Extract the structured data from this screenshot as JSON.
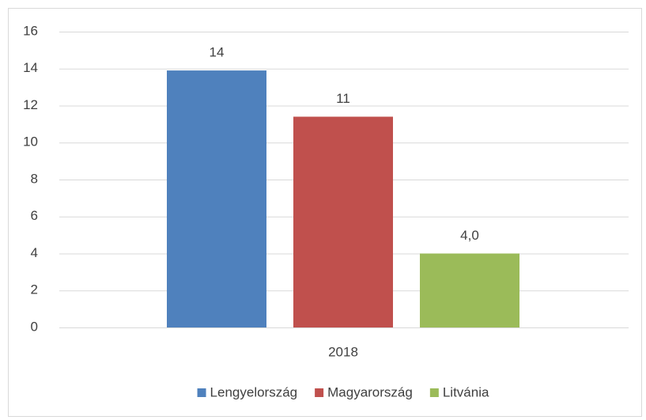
{
  "chart_data": {
    "type": "bar",
    "categories": [
      "2018"
    ],
    "series": [
      {
        "name": "Lengyelország",
        "color": "#4f81bd",
        "values": [
          13.9
        ],
        "value_labels": [
          "14"
        ]
      },
      {
        "name": "Magyarország",
        "color": "#c0504d",
        "values": [
          11.4
        ],
        "value_labels": [
          "11"
        ]
      },
      {
        "name": "Litvánia",
        "color": "#9bbb59",
        "values": [
          4.0
        ],
        "value_labels": [
          "4,0"
        ]
      }
    ],
    "ylim": [
      0,
      16
    ],
    "yticks": [
      0,
      2,
      4,
      6,
      8,
      10,
      12,
      14,
      16
    ],
    "grid": true,
    "legend": "bottom"
  }
}
